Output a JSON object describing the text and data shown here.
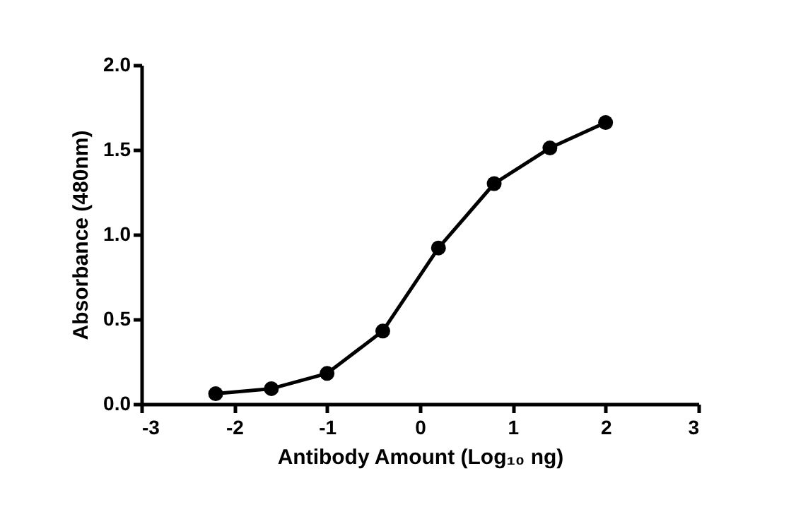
{
  "chart_data": {
    "type": "line",
    "xlabel": "Antibody Amount (Log₁₀ ng)",
    "ylabel": "Absorbance (480nm)",
    "x": [
      -2.2,
      -1.6,
      -1.0,
      -0.4,
      0.2,
      0.8,
      1.4,
      2.0
    ],
    "series": [
      {
        "color": "#000000",
        "values": [
          0.06,
          0.09,
          0.18,
          0.43,
          0.92,
          1.3,
          1.51,
          1.66
        ]
      }
    ],
    "xlim": [
      -3,
      3
    ],
    "xticks": [
      -3,
      -2,
      -1,
      0,
      1,
      2,
      3
    ],
    "ylim": [
      0,
      2
    ],
    "yticks": [
      {
        "value": 0,
        "label": "0.0"
      },
      {
        "value": 0.5,
        "label": "0.5"
      },
      {
        "value": 1,
        "label": "1.0"
      },
      {
        "value": 1.5,
        "label": "1.5"
      },
      {
        "value": 2,
        "label": "2.0"
      }
    ],
    "marker": "circle",
    "line_style": "solid",
    "grid": false
  }
}
